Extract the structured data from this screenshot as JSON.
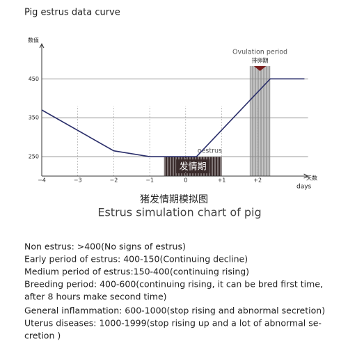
{
  "header": "Pig estrus data curve",
  "chart_data": {
    "type": "line",
    "title": "猪发情期模拟图",
    "subtitle": "Estrus simulation chart of pig",
    "y_label": "数值",
    "x_label": [
      "天数",
      "days"
    ],
    "x": [
      -4,
      -2,
      -1,
      0.3,
      2.35,
      3.3
    ],
    "series": [
      {
        "color": "#2b2f6b",
        "values": [
          370,
          265,
          250,
          250,
          450,
          450
        ]
      }
    ],
    "xlim": [
      -4,
      3.4
    ],
    "ylim": [
      200,
      540
    ],
    "xticks": [
      {
        "value": -4,
        "label": "−4"
      },
      {
        "value": -3,
        "label": "−3"
      },
      {
        "value": -2,
        "label": "−2"
      },
      {
        "value": -1,
        "label": "−1"
      },
      0,
      {
        "value": 1,
        "label": "+1"
      },
      {
        "value": 2,
        "label": "+2"
      }
    ],
    "yticks": [
      250,
      350,
      450
    ],
    "grid": true,
    "regions": [
      {
        "labels": [
          "Ovulation period",
          "排卵期"
        ],
        "x": [
          1.78,
          2.35
        ],
        "color": "#a3a3a3"
      },
      {
        "labels": [
          "oestrus",
          "发情期"
        ],
        "x": [
          -0.6,
          1.0
        ],
        "color": "#3a2b2b"
      }
    ]
  },
  "notes": [
    "Non estrus: >400(No signs of estrus)",
    "Early period of estrus: 400-150(Continuing decline)",
    "Medium period of estrus:150-400(continuing rising)",
    "Breeding period: 400-600(continuing rising, it can be bred first time,",
    "after 8 hours make second time)",
    "General inflammation: 600-1000(stop rising and abnormal secretion)",
    "Uterus diseases: 1000-1999(stop rising up and a lot of abnormal se-",
    "cretion )"
  ]
}
